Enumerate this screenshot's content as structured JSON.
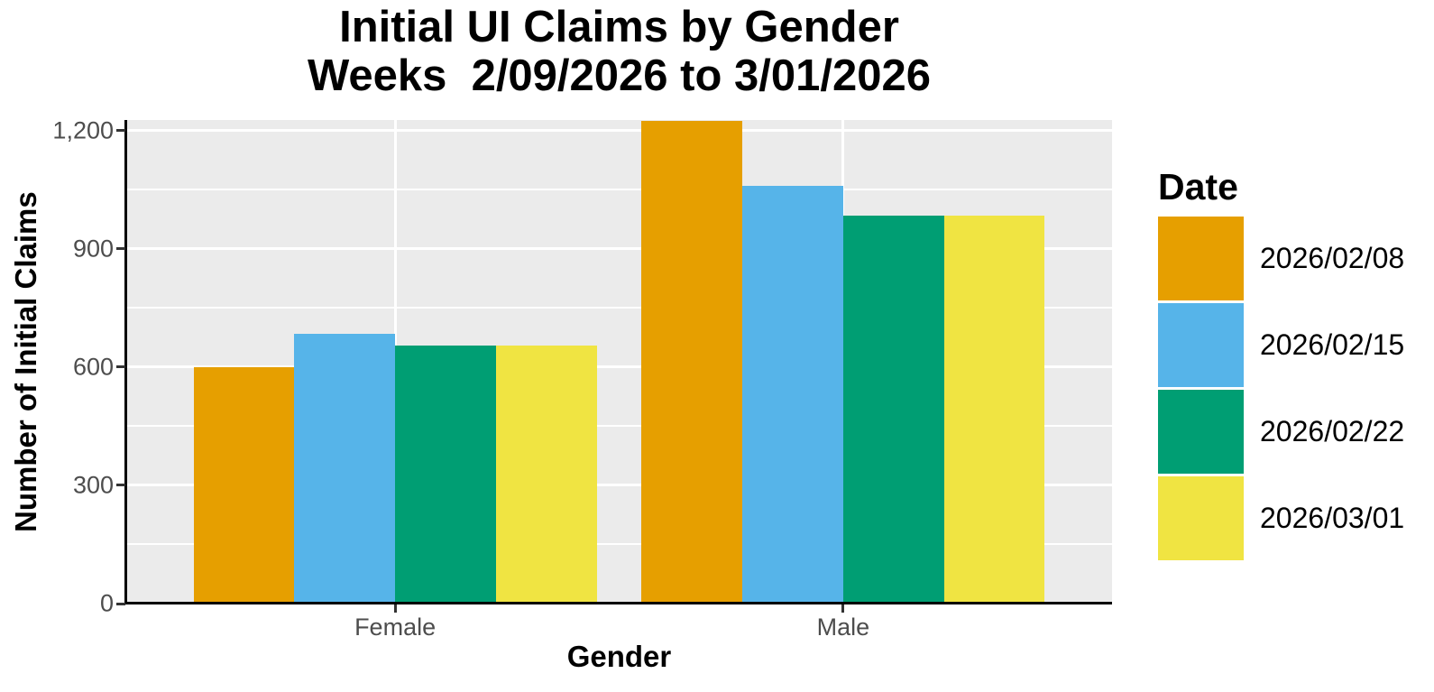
{
  "chart_data": {
    "type": "bar",
    "grouped": true,
    "title": "Initial UI Claims by Gender",
    "subtitle": "Weeks  2/09/2026 to 3/01/2026",
    "xlabel": "Gender",
    "ylabel": "Number of Initial Claims",
    "categories": [
      "Female",
      "Male"
    ],
    "series": [
      {
        "name": "2026/02/08",
        "color": "#E69F00",
        "values": [
          600,
          1225
        ]
      },
      {
        "name": "2026/02/15",
        "color": "#56B4E9",
        "values": [
          685,
          1060
        ]
      },
      {
        "name": "2026/02/22",
        "color": "#009E73",
        "values": [
          655,
          985
        ]
      },
      {
        "name": "2026/03/01",
        "color": "#F0E442",
        "values": [
          655,
          985
        ]
      }
    ],
    "ylim": [
      0,
      1227
    ],
    "yticks": [
      0,
      300,
      600,
      900,
      1200
    ],
    "ytick_labels": [
      "0",
      "300",
      "600",
      "900",
      "1,200"
    ],
    "yminor_ticks": [
      150,
      450,
      750,
      1050
    ],
    "legend_title": "Date",
    "legend_position": "right",
    "grid": true,
    "panel_background": "#EBEBEB",
    "grid_color": "#FFFFFF",
    "axis_text_color": "#4D4D4D",
    "axis_line_color": "#000000",
    "title_color": "#000000"
  }
}
